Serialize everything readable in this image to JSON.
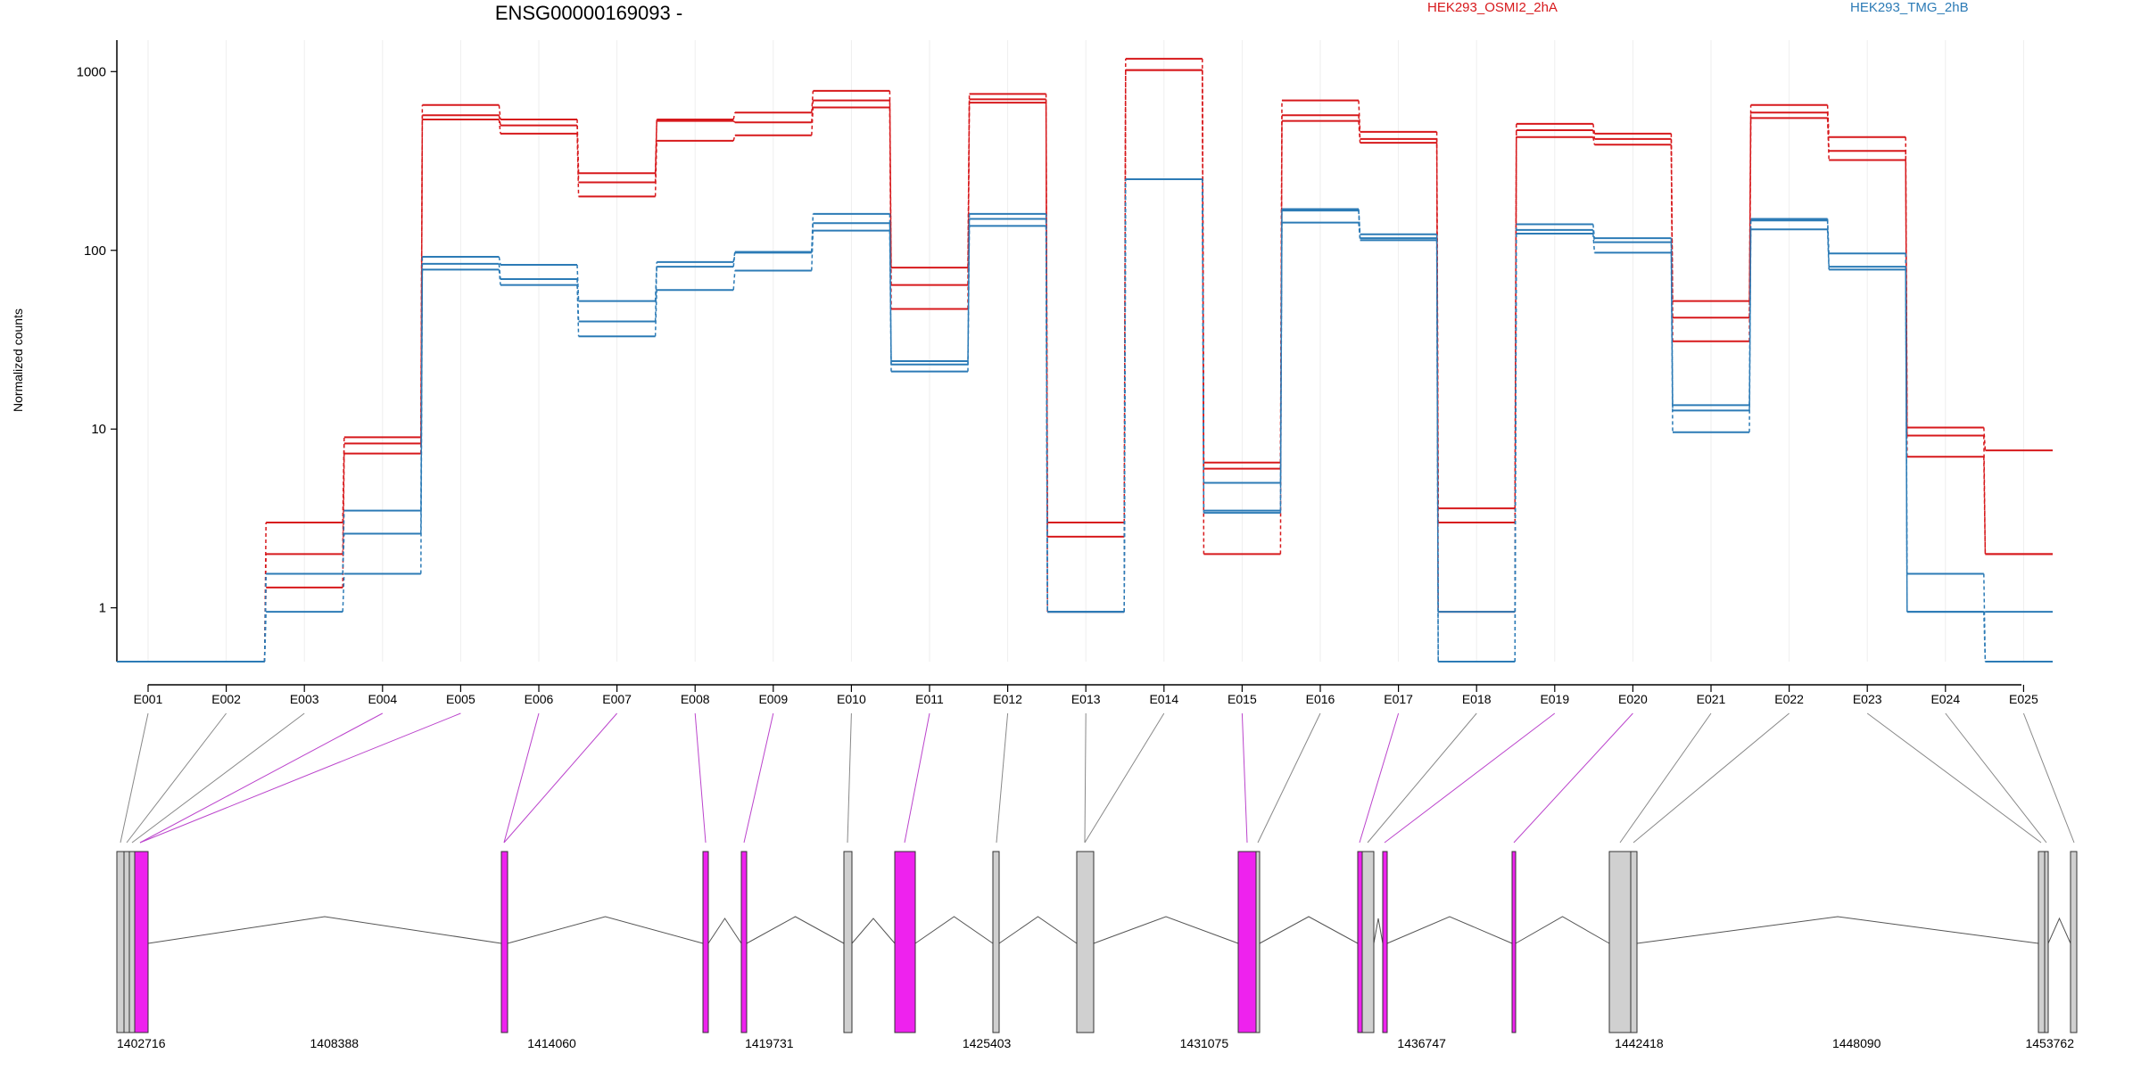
{
  "chart_data": {
    "type": "line",
    "title": "ENSG00000169093 -",
    "ylabel": "Normalized counts",
    "yscale": "log",
    "ylim": [
      0.5,
      1500
    ],
    "yticks": [
      1,
      10,
      100,
      1000
    ],
    "ytick_labels": [
      "1",
      "10",
      "100",
      "1000"
    ],
    "categories": [
      "E001",
      "E002",
      "E003",
      "E004",
      "E005",
      "E006",
      "E007",
      "E008",
      "E009",
      "E010",
      "E011",
      "E012",
      "E013",
      "E014",
      "E015",
      "E016",
      "E017",
      "E018",
      "E019",
      "E020",
      "E021",
      "E022",
      "E023",
      "E024",
      "E025"
    ],
    "legend": [
      {
        "name": "HEK293_OSMI2_2hA",
        "color": "#d7191c"
      },
      {
        "name": "HEK293_TMG_2hB",
        "color": "#2c7bb6"
      }
    ],
    "series": [
      {
        "name": "HEK293_OSMI2_2hA rep1",
        "group": "HEK293_OSMI2_2hA",
        "color": "#d7191c",
        "values": [
          0.5,
          0.5,
          3.0,
          9.0,
          650,
          540,
          270,
          540,
          590,
          780,
          80,
          750,
          3.0,
          1180,
          6.5,
          690,
          460,
          3.6,
          510,
          450,
          52,
          650,
          430,
          10.2,
          7.6
        ]
      },
      {
        "name": "HEK293_OSMI2_2hA rep2",
        "group": "HEK293_OSMI2_2hA",
        "color": "#d7191c",
        "values": [
          0.5,
          0.5,
          2.0,
          8.3,
          570,
          500,
          240,
          530,
          520,
          690,
          64,
          700,
          2.5,
          1020,
          6.0,
          570,
          420,
          3.0,
          470,
          420,
          42,
          590,
          360,
          9.2,
          2.0
        ]
      },
      {
        "name": "HEK293_OSMI2_2hA rep3",
        "group": "HEK293_OSMI2_2hA",
        "color": "#d7191c",
        "values": [
          0.5,
          0.5,
          1.3,
          7.3,
          540,
          450,
          200,
          410,
          440,
          630,
          47,
          670,
          0.95,
          1020,
          2.0,
          530,
          400,
          0.95,
          430,
          390,
          31,
          550,
          320,
          7.0,
          2.0
        ]
      },
      {
        "name": "HEK293_TMG_2hB rep1",
        "group": "HEK293_TMG_2hB",
        "color": "#2c7bb6",
        "values": [
          0.5,
          0.5,
          1.55,
          3.5,
          92,
          83,
          52,
          86,
          98,
          160,
          24,
          160,
          0.95,
          250,
          3.5,
          170,
          123,
          0.95,
          140,
          117,
          13.6,
          150,
          96,
          1.55,
          0.5
        ]
      },
      {
        "name": "HEK293_TMG_2hB rep2",
        "group": "HEK293_TMG_2hB",
        "color": "#2c7bb6",
        "values": [
          0.5,
          0.5,
          1.55,
          2.6,
          84,
          69,
          40,
          81,
          97,
          142,
          23,
          150,
          0.95,
          250,
          5.0,
          167,
          117,
          0.5,
          130,
          111,
          12.7,
          147,
          81,
          0.95,
          0.95
        ]
      },
      {
        "name": "HEK293_TMG_2hB rep3",
        "group": "HEK293_TMG_2hB",
        "color": "#2c7bb6",
        "values": [
          0.5,
          0.5,
          0.95,
          1.55,
          78,
          64,
          33,
          60,
          77,
          129,
          21,
          137,
          0.95,
          250,
          3.4,
          143,
          114,
          0.5,
          124,
          97,
          9.6,
          131,
          78,
          0.95,
          0.5
        ]
      }
    ],
    "grid": true,
    "legend_position": "top"
  },
  "gene_model": {
    "tick_labels": [
      "1402716",
      "1408388",
      "1414060",
      "1419731",
      "1425403",
      "1431075",
      "1436747",
      "1442418",
      "1448090",
      "1453762"
    ],
    "colors": {
      "exon": "#d0d0d0",
      "exon_highlight": "#ee22ee",
      "connector": "#888888",
      "connector_highlight": "#bb44cc"
    }
  }
}
